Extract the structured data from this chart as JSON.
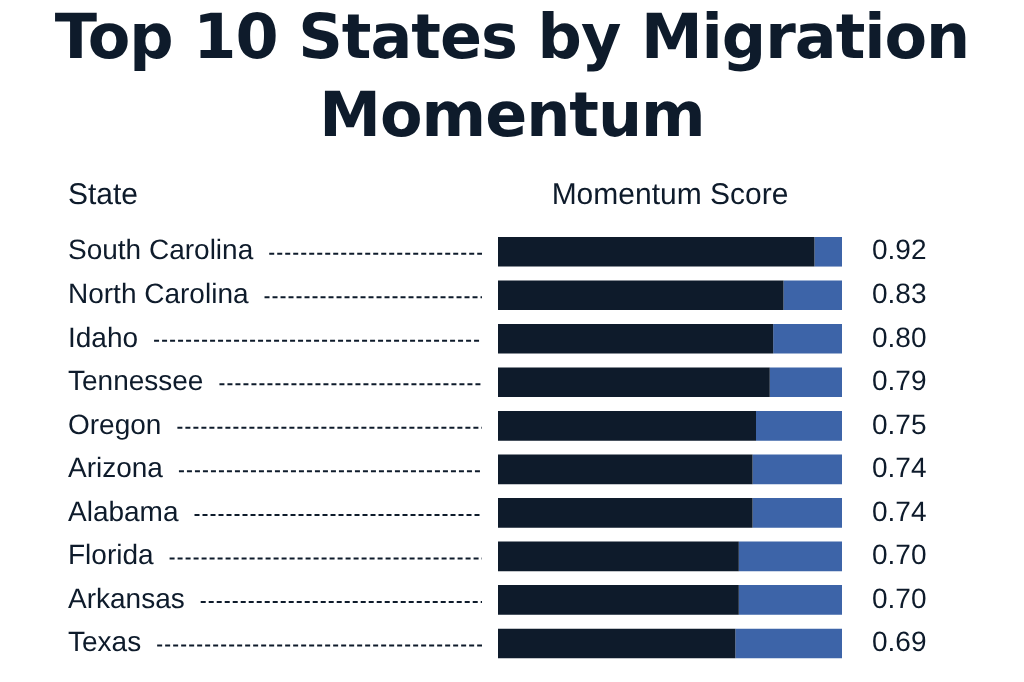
{
  "chart_data": {
    "type": "bar",
    "orientation": "horizontal",
    "stacked": true,
    "title": "Top 10 States by Migration Momentum",
    "ylabel": "State",
    "xlabel": "Momentum Score",
    "categories": [
      "South Carolina",
      "North Carolina",
      "Idaho",
      "Tennessee",
      "Oregon",
      "Arizona",
      "Alabama",
      "Florida",
      "Arkansas",
      "Texas"
    ],
    "series": [
      {
        "color": "#0e1b2b",
        "values": [
          0.92,
          0.83,
          0.8,
          0.79,
          0.75,
          0.74,
          0.74,
          0.7,
          0.7,
          0.69
        ],
        "value_labels": [
          "0.92",
          "0.83",
          "0.80",
          "0.79",
          "0.75",
          "0.74",
          "0.74",
          "0.70",
          "0.70",
          "0.69"
        ]
      },
      {
        "color": "#3d64a8",
        "values": [
          0.08,
          0.17,
          0.2,
          0.21,
          0.25,
          0.26,
          0.26,
          0.3,
          0.3,
          0.31
        ]
      }
    ],
    "xlim": [
      0,
      1
    ],
    "tick_labels": "y",
    "legend": false
  }
}
